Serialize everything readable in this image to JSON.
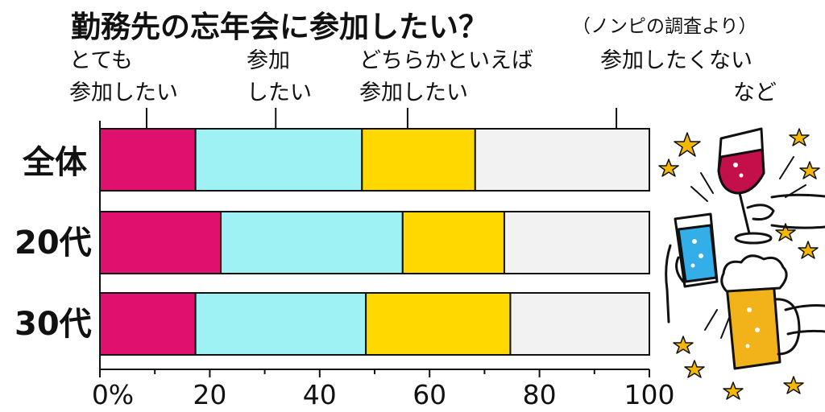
{
  "chart_data": {
    "type": "bar",
    "orientation": "horizontal",
    "stacked": true,
    "title": "勤務先の忘年会に参加したい？",
    "subtitle": "（ノンピの調査より）",
    "categories": [
      "全体",
      "20代",
      "30代"
    ],
    "series": [
      {
        "name_lines": [
          "とても",
          "参加したい"
        ],
        "color": "#e0106e",
        "values": [
          17.4,
          22.0,
          17.4
        ]
      },
      {
        "name_lines": [
          "参加",
          "したい"
        ],
        "color": "#9ff2f4",
        "values": [
          30.3,
          33.1,
          31.0
        ]
      },
      {
        "name_lines": [
          "どちらかといえば",
          "参加したい"
        ],
        "color": "#ffd800",
        "values": [
          20.6,
          18.5,
          26.3
        ]
      },
      {
        "name_lines": [
          "参加したくない",
          "など"
        ],
        "color": "#f2f2f2",
        "values": [
          31.7,
          26.4,
          25.3
        ]
      }
    ],
    "xlim": [
      0,
      100
    ],
    "xticks": [
      "0%",
      "20",
      "40",
      "60",
      "80",
      "100"
    ],
    "xtick_values": [
      0,
      20,
      40,
      60,
      80,
      100
    ],
    "minor_ticks": [
      10,
      30,
      50,
      70,
      90
    ],
    "legend_pointer_values": [
      8.5,
      32,
      56,
      94
    ],
    "grid": false,
    "legend_placement": "top"
  },
  "decoration": {
    "illustration": "toasting-glasses-with-stars"
  }
}
